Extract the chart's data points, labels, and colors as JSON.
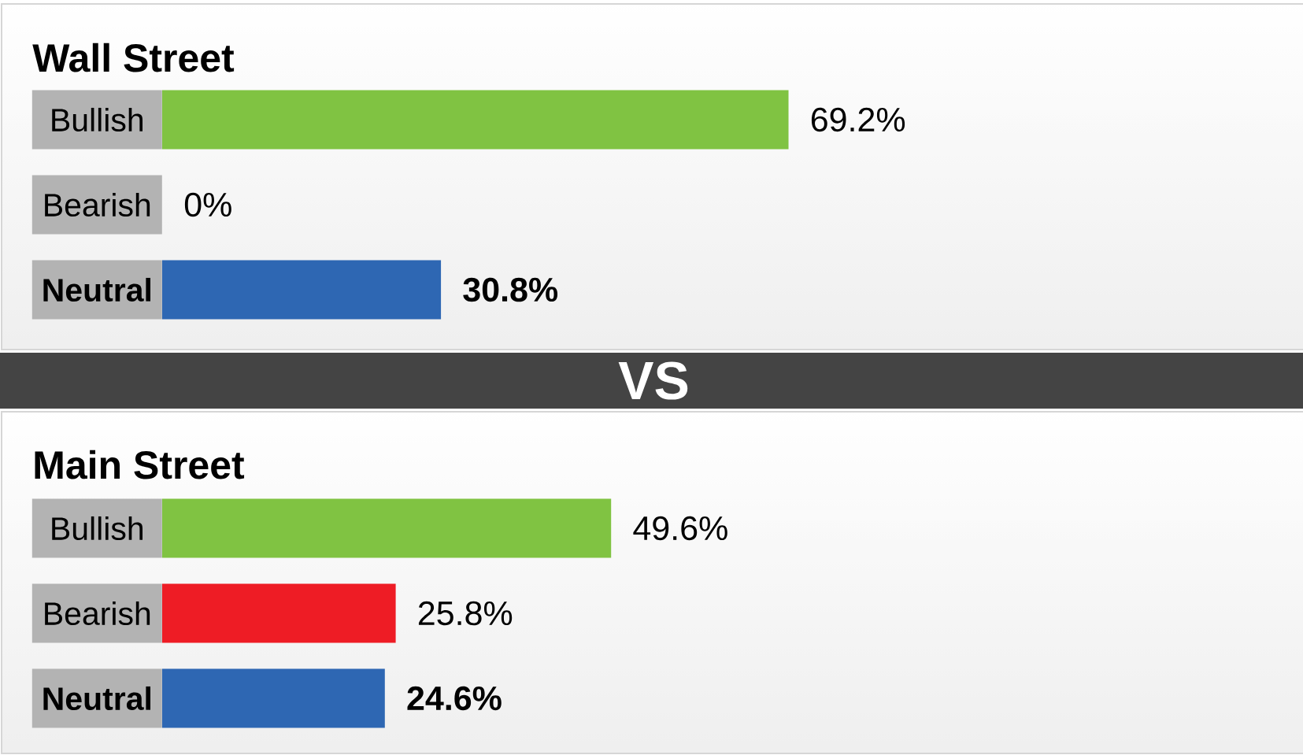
{
  "chart_data": [
    {
      "type": "bar",
      "orientation": "horizontal",
      "title": "Wall Street",
      "categories": [
        "Bullish",
        "Bearish",
        "Neutral"
      ],
      "values": [
        69.2,
        0,
        30.8
      ],
      "colors": [
        "#80c342",
        "#ee1c25",
        "#2e67b3"
      ],
      "value_labels": [
        "69.2%",
        "0%",
        "30.8%"
      ]
    },
    {
      "type": "other",
      "title": "VS"
    },
    {
      "type": "bar",
      "orientation": "horizontal",
      "title": "Main Street",
      "categories": [
        "Bullish",
        "Bearish",
        "Neutral"
      ],
      "values": [
        49.6,
        25.8,
        24.6
      ],
      "colors": [
        "#80c342",
        "#ee1c25",
        "#2e67b3"
      ],
      "value_labels": [
        "49.6%",
        "25.8%",
        "24.6%"
      ]
    }
  ]
}
